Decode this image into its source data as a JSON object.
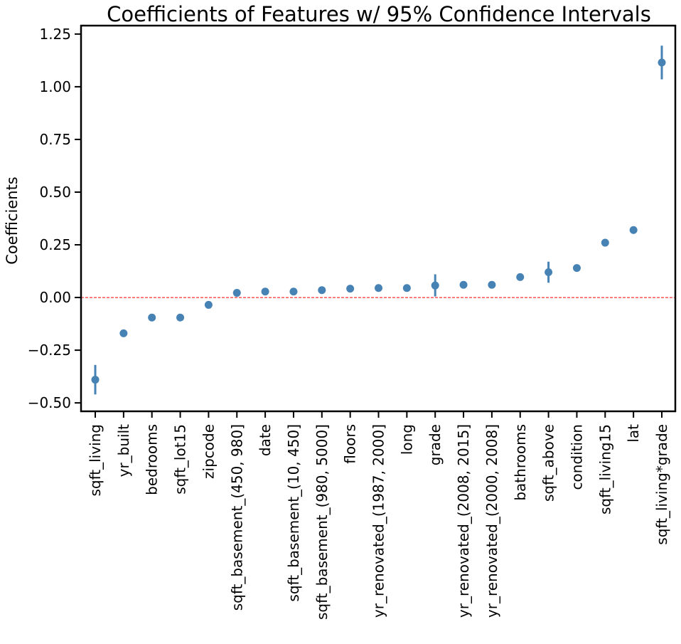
{
  "chart_data": {
    "type": "scatter",
    "title": "Coefficients of Features w/ 95% Confidence Intervals",
    "xlabel": "",
    "ylabel": "Coefficients",
    "ylim": [
      -0.54,
      1.29
    ],
    "yticks": [
      -0.5,
      -0.25,
      0.0,
      0.25,
      0.5,
      0.75,
      1.0,
      1.25
    ],
    "ytick_labels": [
      "−0.50",
      "−0.25",
      "0.00",
      "0.25",
      "0.50",
      "0.75",
      "1.00",
      "1.25"
    ],
    "reference_line": {
      "y": 0,
      "color": "#ff0000",
      "style": "dashed"
    },
    "marker_color": "#4682b4",
    "grid": false,
    "categories": [
      "sqft_living",
      "yr_built",
      "bedrooms",
      "sqft_lot15",
      "zipcode",
      "sqft_basement_(450, 980]",
      "date",
      "sqft_basement_(10, 450]",
      "sqft_basement_(980, 5000]",
      "floors",
      "yr_renovated_(1987, 2000]",
      "long",
      "grade",
      "yr_renovated_(2008, 2015]",
      "yr_renovated_(2000, 2008]",
      "bathrooms",
      "sqft_above",
      "condition",
      "sqft_living15",
      "lat",
      "sqft_living*grade"
    ],
    "values": [
      -0.39,
      -0.17,
      -0.095,
      -0.095,
      -0.035,
      0.022,
      0.028,
      0.028,
      0.035,
      0.042,
      0.045,
      0.045,
      0.057,
      0.06,
      0.06,
      0.097,
      0.12,
      0.14,
      0.26,
      0.32,
      1.115
    ],
    "ci_low": [
      -0.46,
      -0.18,
      -0.105,
      -0.105,
      -0.045,
      0.015,
      0.021,
      0.021,
      0.028,
      0.035,
      0.038,
      0.038,
      0.005,
      0.053,
      0.053,
      0.088,
      0.07,
      0.132,
      0.252,
      0.312,
      1.035
    ],
    "ci_high": [
      -0.32,
      -0.16,
      -0.085,
      -0.085,
      -0.025,
      0.029,
      0.035,
      0.035,
      0.042,
      0.049,
      0.052,
      0.052,
      0.11,
      0.067,
      0.067,
      0.106,
      0.17,
      0.148,
      0.268,
      0.328,
      1.195
    ]
  }
}
